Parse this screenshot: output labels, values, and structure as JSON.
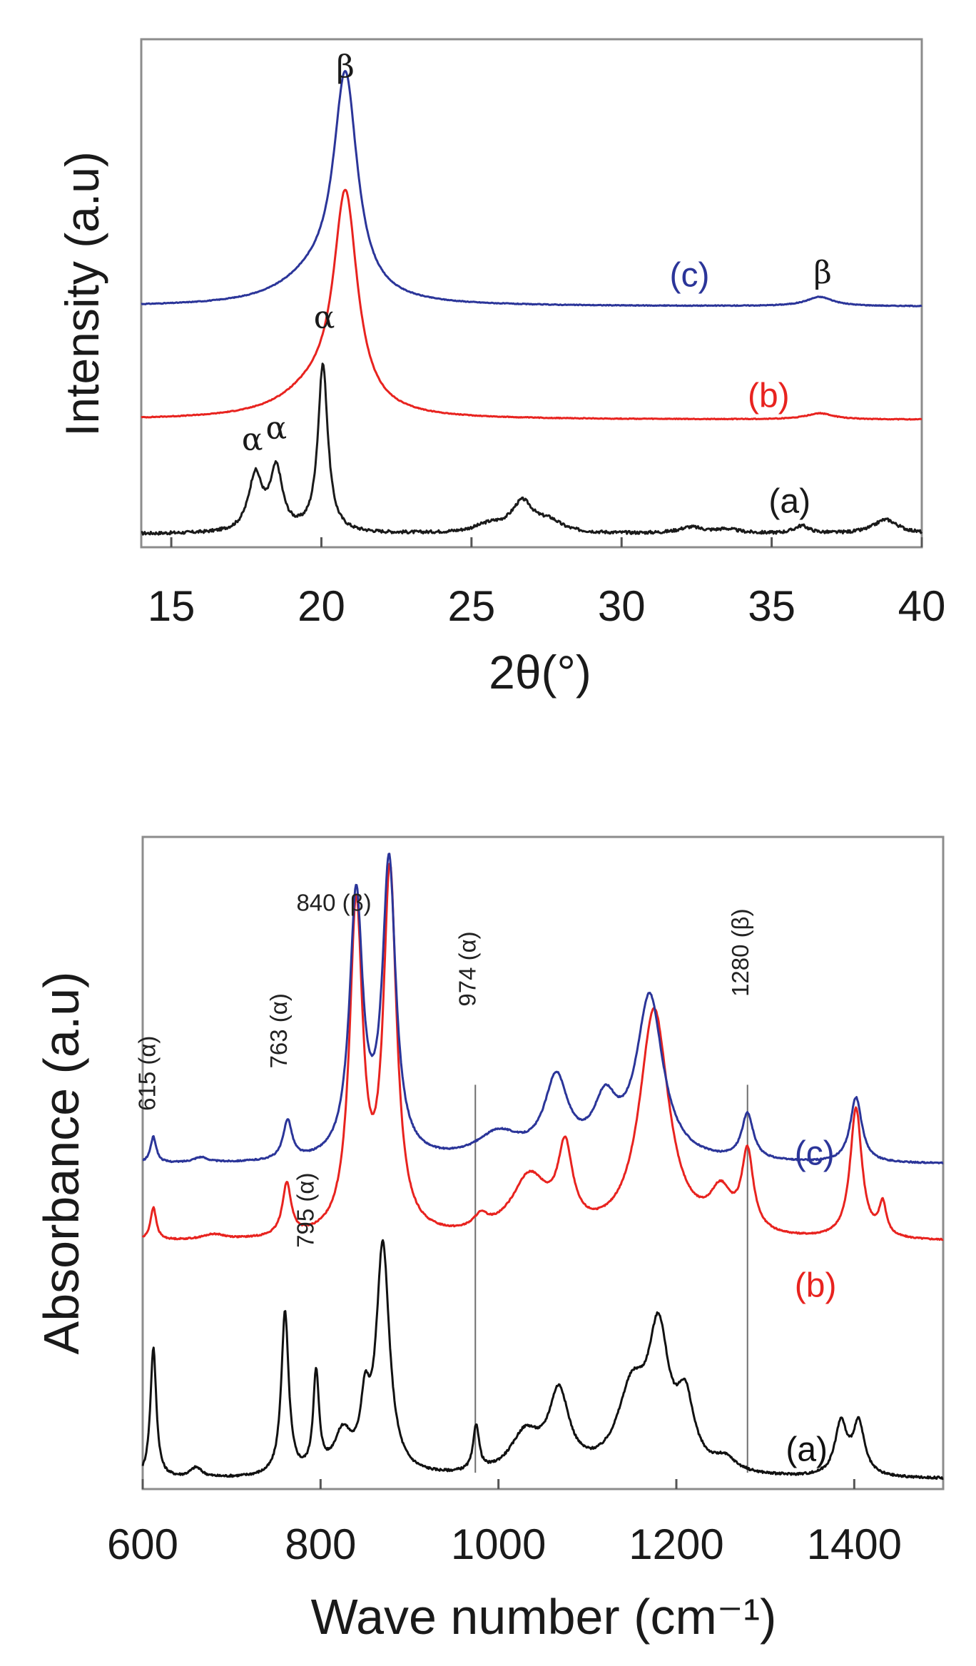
{
  "chart_data": [
    {
      "type": "line",
      "id": "xrd",
      "xlabel": "2θ(°)",
      "ylabel": "Intensity (a.u)",
      "xlim": [
        14,
        40
      ],
      "ylim": [
        0,
        100
      ],
      "xticks": [
        15,
        20,
        25,
        30,
        35,
        40
      ],
      "grid": false,
      "series": [
        {
          "name": "(a)",
          "color": "#1a1a1a",
          "baseline": 2.6,
          "peaks": [
            [
              17.8,
              11,
              0.28
            ],
            [
              18.5,
              12,
              0.25
            ],
            [
              20.05,
              33,
              0.2
            ],
            [
              25.6,
              1.5,
              0.6
            ],
            [
              26.7,
              6,
              0.45
            ],
            [
              27.6,
              2,
              0.5
            ],
            [
              32.3,
              1.2,
              0.5
            ],
            [
              33.5,
              0.8,
              0.5
            ],
            [
              36,
              1.5,
              0.3
            ],
            [
              38.8,
              2.8,
              0.5
            ]
          ],
          "noise": 0.6,
          "label": "(a)",
          "label_x": 34.9,
          "label_y": 6.8
        },
        {
          "name": "(b)",
          "color": "#e8231f",
          "baseline": 25.1,
          "peaks": [
            [
              20.8,
              42,
              0.48
            ],
            [
              19.8,
              5,
              1.4
            ],
            [
              36.6,
              1.2,
              0.55
            ]
          ],
          "noise": 0.15,
          "label": "(b)",
          "label_x": 34.2,
          "label_y": 27.6
        },
        {
          "name": "(c)",
          "color": "#2b3599",
          "baseline": 47.4,
          "peaks": [
            [
              20.8,
              43,
              0.48
            ],
            [
              19.8,
              5,
              1.4
            ],
            [
              36.6,
              1.8,
              0.55
            ]
          ],
          "noise": 0.15,
          "label": "(c)",
          "label_x": 31.6,
          "label_y": 51.3
        }
      ],
      "annotations": [
        {
          "text": "β",
          "x": 20.8,
          "y": 92.5
        },
        {
          "text": "β",
          "x": 36.7,
          "y": 52.0
        },
        {
          "text": "α",
          "x": 20.1,
          "y": 43.2
        },
        {
          "text": "α",
          "x": 17.7,
          "y": 19.2
        },
        {
          "text": "α",
          "x": 18.5,
          "y": 21.4
        }
      ]
    },
    {
      "type": "line",
      "id": "ftir",
      "xlabel": "Wave  number (cm⁻¹)",
      "ylabel": "Absorbance (a.u)",
      "xlim": [
        600,
        1500
      ],
      "ylim": [
        0,
        100
      ],
      "xticks": [
        600,
        800,
        1000,
        1200,
        1400
      ],
      "grid": false,
      "series": [
        {
          "name": "(a)",
          "color": "#111111",
          "baseline": 1.5,
          "peaks": [
            [
              612,
              20,
              4
            ],
            [
              660,
              1.5,
              8
            ],
            [
              760,
              25,
              5
            ],
            [
              795,
              15,
              4
            ],
            [
              825,
              6,
              12
            ],
            [
              850,
              9,
              6
            ],
            [
              870,
              35,
              9
            ],
            [
              975,
              7,
              4
            ],
            [
              1030,
              6,
              20
            ],
            [
              1068,
              12,
              14
            ],
            [
              1150,
              12,
              20
            ],
            [
              1180,
              20,
              14
            ],
            [
              1210,
              10,
              12
            ],
            [
              1255,
              2,
              15
            ],
            [
              1385,
              8,
              8
            ],
            [
              1405,
              8,
              8
            ]
          ],
          "noise": 0.35,
          "label": "(a)",
          "label_x": 1323,
          "label_y": 4.3
        },
        {
          "name": "(b)",
          "color": "#e8231f",
          "baseline": 37.9,
          "peaks": [
            [
              612,
              5,
              4
            ],
            [
              680,
              0.8,
              15
            ],
            [
              762,
              8,
              6
            ],
            [
              840,
              50,
              9
            ],
            [
              878,
              55,
              9
            ],
            [
              980,
              2,
              10
            ],
            [
              1035,
              9,
              25
            ],
            [
              1075,
              12,
              10
            ],
            [
              1175,
              35,
              20
            ],
            [
              1250,
              6,
              15
            ],
            [
              1280,
              12,
              8
            ],
            [
              1402,
              20,
              8
            ],
            [
              1432,
              5,
              5
            ]
          ],
          "noise": 0.2,
          "label": "(b)",
          "label_x": 1333,
          "label_y": 29.5
        },
        {
          "name": "(c)",
          "color": "#2b3599",
          "baseline": 49.8,
          "peaks": [
            [
              612,
              4,
              4
            ],
            [
              665,
              0.8,
              10
            ],
            [
              763,
              6,
              6
            ],
            [
              840,
              40,
              9
            ],
            [
              877,
              45,
              9
            ],
            [
              1000,
              4,
              30
            ],
            [
              1065,
              12,
              16
            ],
            [
              1120,
              8,
              16
            ],
            [
              1170,
              25,
              18
            ],
            [
              1280,
              7,
              8
            ],
            [
              1402,
              10,
              8
            ]
          ],
          "noise": 0.2,
          "label": "(c)",
          "label_x": 1333,
          "label_y": 49.7
        }
      ],
      "vlines": [
        974,
        1280
      ],
      "annotations": [
        {
          "text": "615 (α)",
          "x": 614,
          "y": 58,
          "rotate": -90
        },
        {
          "text": "763 (α)",
          "x": 762,
          "y": 64.5,
          "rotate": -90
        },
        {
          "text": "795 (α)",
          "x": 792,
          "y": 37,
          "rotate": -90
        },
        {
          "text": "974 (α)",
          "x": 974,
          "y": 74,
          "rotate": -90
        },
        {
          "text": "1280 (β)",
          "x": 1281,
          "y": 75.5,
          "rotate": -90
        },
        {
          "text": "840 (β)",
          "x": 815,
          "y": 88.7,
          "rotate": 0
        }
      ]
    }
  ]
}
